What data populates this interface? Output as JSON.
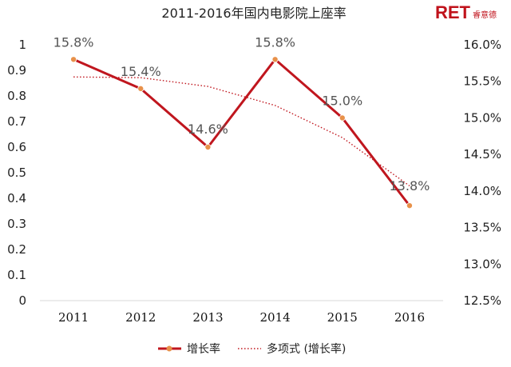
{
  "brand": {
    "logo_text": "RET",
    "logo_sub": "睿意德",
    "color": "#c0121b"
  },
  "chart_data": {
    "type": "line",
    "title": "2011-2016年国内电影院上座率",
    "categories": [
      "2011",
      "2012",
      "2013",
      "2014",
      "2015",
      "2016"
    ],
    "series": [
      {
        "name": "增长率",
        "values": [
          15.8,
          15.4,
          14.6,
          15.8,
          15.0,
          13.8
        ],
        "labels": [
          "15.8%",
          "15.4%",
          "14.6%",
          "15.8%",
          "15.0%",
          "13.8%"
        ],
        "color": "#c0161e",
        "marker_color": "#e8914a"
      },
      {
        "name": "多项式 (增长率)",
        "style": "dotted",
        "color": "#c0161e",
        "values": [
          15.56,
          15.55,
          15.43,
          15.17,
          14.73,
          14.07
        ]
      }
    ],
    "y_left": {
      "min": 0,
      "max": 1,
      "step": 0.1,
      "tick_labels": [
        "0",
        "0.1",
        "0.2",
        "0.3",
        "0.4",
        "0.5",
        "0.6",
        "0.7",
        "0.8",
        "0.9",
        "1"
      ]
    },
    "y_right": {
      "min": 12.5,
      "max": 16.0,
      "step": 0.5,
      "tick_labels": [
        "12.5%",
        "13.0%",
        "13.5%",
        "14.0%",
        "14.5%",
        "15.0%",
        "15.5%",
        "16.0%"
      ]
    },
    "grid": false,
    "legend_position": "bottom"
  }
}
